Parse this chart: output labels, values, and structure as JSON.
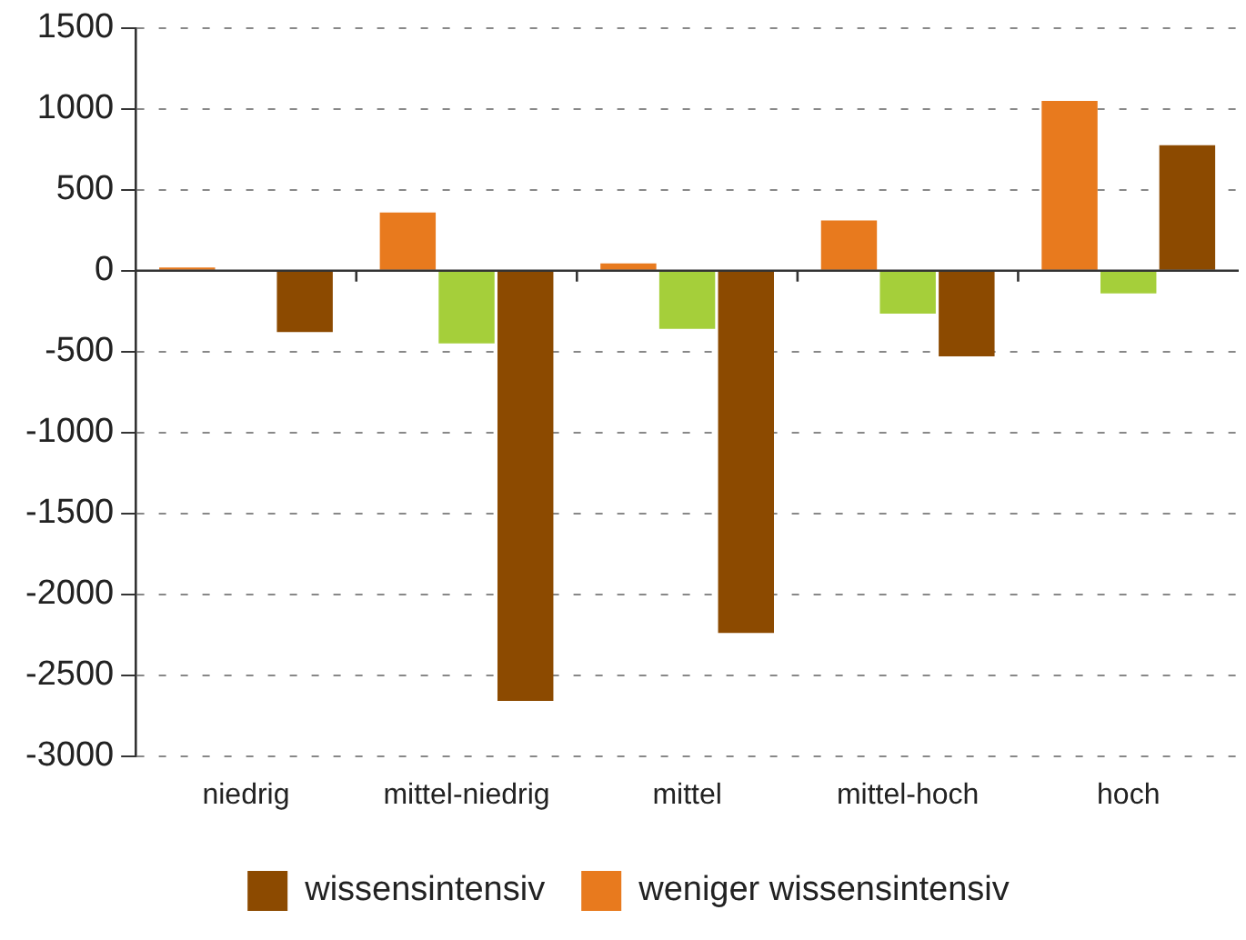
{
  "chart_data": {
    "type": "bar",
    "categories": [
      "niedrig",
      "mittel-niedrig",
      "mittel",
      "mittel-hoch",
      "hoch"
    ],
    "series": [
      {
        "name": "weniger wissensintensiv",
        "color": "#e87a1e",
        "values": [
          20,
          360,
          45,
          310,
          1050
        ]
      },
      {
        "color": "#a5cf3a",
        "values": [
          5,
          -450,
          -360,
          -265,
          -140
        ]
      },
      {
        "name": "wissensintensiv",
        "color": "#8c4a00",
        "values": [
          -380,
          -2660,
          -2240,
          -530,
          775
        ]
      }
    ],
    "ylim": [
      -3000,
      1500
    ],
    "yticks": [
      -3000,
      -2500,
      -2000,
      -1500,
      -1000,
      -500,
      0,
      500,
      1000,
      1500
    ],
    "grid": "y",
    "legend": "bottom"
  }
}
